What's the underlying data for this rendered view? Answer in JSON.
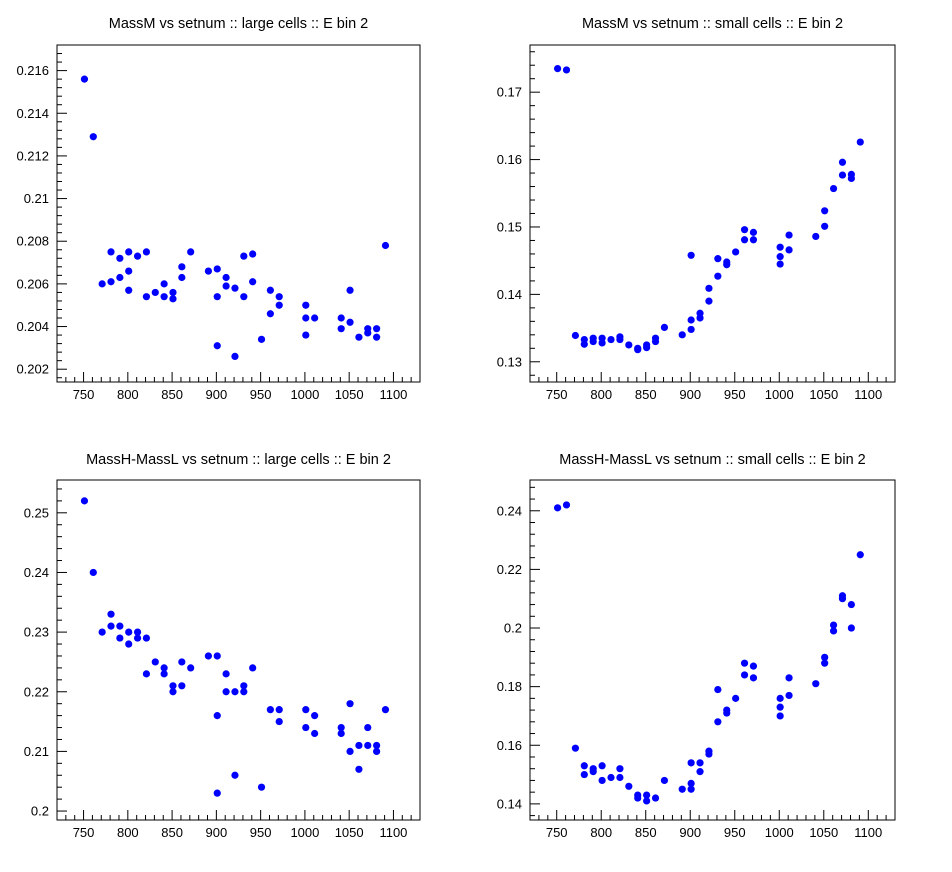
{
  "chart_data": [
    {
      "type": "scatter",
      "title": "MassM vs setnum :: large cells :: E bin 2",
      "xlim": [
        720,
        1130
      ],
      "ylim": [
        0.2014,
        0.2172
      ],
      "xticks": [
        750,
        800,
        850,
        900,
        950,
        1000,
        1050,
        1100
      ],
      "yticks": [
        0.202,
        0.204,
        0.206,
        0.208,
        0.21,
        0.212,
        0.214,
        0.216
      ],
      "yticklabels": [
        "0.202",
        "0.204",
        "0.206",
        "0.208",
        "0.21",
        "0.212",
        "0.214",
        "0.216"
      ],
      "marker_color": "#0000ff",
      "points": [
        [
          751,
          0.2156
        ],
        [
          761,
          0.2129
        ],
        [
          771,
          0.206
        ],
        [
          781,
          0.2061
        ],
        [
          781,
          0.2075
        ],
        [
          791,
          0.2063
        ],
        [
          791,
          0.2072
        ],
        [
          801,
          0.2066
        ],
        [
          801,
          0.2057
        ],
        [
          801,
          0.2075
        ],
        [
          811,
          0.2073
        ],
        [
          821,
          0.2054
        ],
        [
          821,
          0.2075
        ],
        [
          831,
          0.2056
        ],
        [
          841,
          0.2054
        ],
        [
          841,
          0.206
        ],
        [
          851,
          0.2056
        ],
        [
          851,
          0.2053
        ],
        [
          861,
          0.2063
        ],
        [
          861,
          0.2068
        ],
        [
          871,
          0.2075
        ],
        [
          891,
          0.2066
        ],
        [
          901,
          0.2067
        ],
        [
          901,
          0.2054
        ],
        [
          901,
          0.2031
        ],
        [
          911,
          0.2063
        ],
        [
          911,
          0.2059
        ],
        [
          921,
          0.2058
        ],
        [
          921,
          0.2026
        ],
        [
          931,
          0.2054
        ],
        [
          931,
          0.2073
        ],
        [
          941,
          0.2074
        ],
        [
          941,
          0.2061
        ],
        [
          951,
          0.2034
        ],
        [
          961,
          0.2057
        ],
        [
          961,
          0.2046
        ],
        [
          971,
          0.2054
        ],
        [
          971,
          0.205
        ],
        [
          1001,
          0.205
        ],
        [
          1001,
          0.2044
        ],
        [
          1001,
          0.2036
        ],
        [
          1011,
          0.2044
        ],
        [
          1041,
          0.2044
        ],
        [
          1041,
          0.2039
        ],
        [
          1051,
          0.2057
        ],
        [
          1051,
          0.2042
        ],
        [
          1061,
          0.2035
        ],
        [
          1071,
          0.2039
        ],
        [
          1071,
          0.2037
        ],
        [
          1081,
          0.2039
        ],
        [
          1081,
          0.2035
        ],
        [
          1091,
          0.2078
        ]
      ]
    },
    {
      "type": "scatter",
      "title": "MassM vs setnum :: small cells :: E bin 2",
      "xlim": [
        720,
        1130
      ],
      "ylim": [
        0.127,
        0.177
      ],
      "xticks": [
        750,
        800,
        850,
        900,
        950,
        1000,
        1050,
        1100
      ],
      "yticks": [
        0.13,
        0.14,
        0.15,
        0.16,
        0.17
      ],
      "yticklabels": [
        "0.13",
        "0.14",
        "0.15",
        "0.16",
        "0.17"
      ],
      "marker_color": "#0000ff",
      "points": [
        [
          751,
          0.1735
        ],
        [
          761,
          0.1733
        ],
        [
          771,
          0.1339
        ],
        [
          781,
          0.1326
        ],
        [
          781,
          0.1333
        ],
        [
          791,
          0.133
        ],
        [
          791,
          0.1335
        ],
        [
          801,
          0.1328
        ],
        [
          801,
          0.1335
        ],
        [
          811,
          0.1333
        ],
        [
          821,
          0.1337
        ],
        [
          821,
          0.1333
        ],
        [
          831,
          0.1325
        ],
        [
          841,
          0.1318
        ],
        [
          841,
          0.132
        ],
        [
          851,
          0.1321
        ],
        [
          851,
          0.1325
        ],
        [
          861,
          0.133
        ],
        [
          861,
          0.1335
        ],
        [
          871,
          0.1351
        ],
        [
          891,
          0.134
        ],
        [
          901,
          0.1458
        ],
        [
          901,
          0.1362
        ],
        [
          901,
          0.1348
        ],
        [
          911,
          0.1365
        ],
        [
          911,
          0.1372
        ],
        [
          921,
          0.139
        ],
        [
          921,
          0.1409
        ],
        [
          931,
          0.1427
        ],
        [
          931,
          0.1453
        ],
        [
          941,
          0.1444
        ],
        [
          941,
          0.1448
        ],
        [
          951,
          0.1463
        ],
        [
          961,
          0.1481
        ],
        [
          961,
          0.1496
        ],
        [
          971,
          0.1481
        ],
        [
          971,
          0.1492
        ],
        [
          1001,
          0.1445
        ],
        [
          1001,
          0.1456
        ],
        [
          1001,
          0.147
        ],
        [
          1011,
          0.1466
        ],
        [
          1011,
          0.1488
        ],
        [
          1041,
          0.1486
        ],
        [
          1051,
          0.1501
        ],
        [
          1051,
          0.1524
        ],
        [
          1061,
          0.1557
        ],
        [
          1071,
          0.1577
        ],
        [
          1071,
          0.1596
        ],
        [
          1081,
          0.1578
        ],
        [
          1081,
          0.1572
        ],
        [
          1091,
          0.1626
        ]
      ]
    },
    {
      "type": "scatter",
      "title": "MassH-MassL vs setnum :: large cells :: E bin 2",
      "xlim": [
        720,
        1130
      ],
      "ylim": [
        0.1985,
        0.2555
      ],
      "xticks": [
        750,
        800,
        850,
        900,
        950,
        1000,
        1050,
        1100
      ],
      "yticks": [
        0.2,
        0.21,
        0.22,
        0.23,
        0.24,
        0.25
      ],
      "yticklabels": [
        "0.2",
        "0.21",
        "0.22",
        "0.23",
        "0.24",
        "0.25"
      ],
      "marker_color": "#0000ff",
      "points": [
        [
          751,
          0.252
        ],
        [
          761,
          0.24
        ],
        [
          771,
          0.23
        ],
        [
          781,
          0.231
        ],
        [
          781,
          0.233
        ],
        [
          791,
          0.229
        ],
        [
          791,
          0.231
        ],
        [
          801,
          0.23
        ],
        [
          801,
          0.228
        ],
        [
          811,
          0.23
        ],
        [
          811,
          0.229
        ],
        [
          821,
          0.229
        ],
        [
          821,
          0.223
        ],
        [
          831,
          0.225
        ],
        [
          841,
          0.224
        ],
        [
          841,
          0.223
        ],
        [
          851,
          0.221
        ],
        [
          851,
          0.22
        ],
        [
          861,
          0.221
        ],
        [
          861,
          0.225
        ],
        [
          871,
          0.224
        ],
        [
          891,
          0.226
        ],
        [
          901,
          0.226
        ],
        [
          901,
          0.216
        ],
        [
          901,
          0.203
        ],
        [
          911,
          0.223
        ],
        [
          911,
          0.22
        ],
        [
          921,
          0.22
        ],
        [
          921,
          0.206
        ],
        [
          931,
          0.22
        ],
        [
          931,
          0.221
        ],
        [
          941,
          0.224
        ],
        [
          951,
          0.204
        ],
        [
          961,
          0.217
        ],
        [
          971,
          0.217
        ],
        [
          971,
          0.215
        ],
        [
          1001,
          0.217
        ],
        [
          1001,
          0.214
        ],
        [
          1011,
          0.216
        ],
        [
          1011,
          0.213
        ],
        [
          1041,
          0.214
        ],
        [
          1041,
          0.213
        ],
        [
          1051,
          0.218
        ],
        [
          1051,
          0.21
        ],
        [
          1061,
          0.207
        ],
        [
          1061,
          0.211
        ],
        [
          1071,
          0.214
        ],
        [
          1071,
          0.211
        ],
        [
          1081,
          0.211
        ],
        [
          1081,
          0.21
        ],
        [
          1091,
          0.217
        ]
      ]
    },
    {
      "type": "scatter",
      "title": "MassH-MassL vs setnum :: small cells :: E bin 2",
      "xlim": [
        720,
        1130
      ],
      "ylim": [
        0.1345,
        0.2505
      ],
      "xticks": [
        750,
        800,
        850,
        900,
        950,
        1000,
        1050,
        1100
      ],
      "yticks": [
        0.14,
        0.16,
        0.18,
        0.2,
        0.22,
        0.24
      ],
      "yticklabels": [
        "0.14",
        "0.16",
        "0.18",
        "0.2",
        "0.22",
        "0.24"
      ],
      "marker_color": "#0000ff",
      "points": [
        [
          751,
          0.241
        ],
        [
          761,
          0.242
        ],
        [
          771,
          0.159
        ],
        [
          781,
          0.153
        ],
        [
          781,
          0.15
        ],
        [
          791,
          0.152
        ],
        [
          791,
          0.151
        ],
        [
          801,
          0.153
        ],
        [
          801,
          0.148
        ],
        [
          811,
          0.149
        ],
        [
          821,
          0.152
        ],
        [
          821,
          0.149
        ],
        [
          831,
          0.146
        ],
        [
          841,
          0.143
        ],
        [
          841,
          0.142
        ],
        [
          851,
          0.143
        ],
        [
          851,
          0.141
        ],
        [
          861,
          0.142
        ],
        [
          871,
          0.148
        ],
        [
          891,
          0.145
        ],
        [
          901,
          0.154
        ],
        [
          901,
          0.147
        ],
        [
          901,
          0.145
        ],
        [
          911,
          0.151
        ],
        [
          911,
          0.154
        ],
        [
          921,
          0.158
        ],
        [
          921,
          0.157
        ],
        [
          931,
          0.168
        ],
        [
          931,
          0.179
        ],
        [
          941,
          0.171
        ],
        [
          941,
          0.172
        ],
        [
          951,
          0.176
        ],
        [
          961,
          0.184
        ],
        [
          961,
          0.188
        ],
        [
          971,
          0.187
        ],
        [
          971,
          0.183
        ],
        [
          1001,
          0.17
        ],
        [
          1001,
          0.173
        ],
        [
          1001,
          0.176
        ],
        [
          1011,
          0.177
        ],
        [
          1011,
          0.183
        ],
        [
          1041,
          0.181
        ],
        [
          1051,
          0.188
        ],
        [
          1051,
          0.19
        ],
        [
          1061,
          0.199
        ],
        [
          1061,
          0.201
        ],
        [
          1071,
          0.211
        ],
        [
          1071,
          0.21
        ],
        [
          1081,
          0.208
        ],
        [
          1081,
          0.2
        ],
        [
          1091,
          0.225
        ]
      ]
    }
  ]
}
